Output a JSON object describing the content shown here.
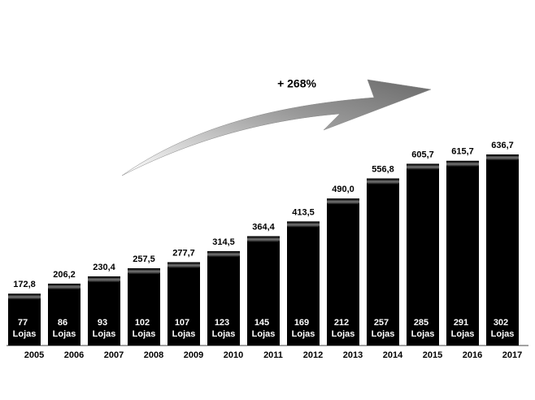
{
  "chart_data": {
    "type": "bar",
    "annotation": "+  268%",
    "categories": [
      "2005",
      "2006",
      "2007",
      "2008",
      "2009",
      "2010",
      "2011",
      "2012",
      "2013",
      "2014",
      "2015",
      "2016",
      "2017"
    ],
    "values": [
      172.8,
      206.2,
      230.4,
      257.5,
      277.7,
      314.5,
      364.4,
      413.5,
      490.0,
      556.8,
      605.7,
      615.7,
      636.7
    ],
    "value_labels": [
      "172,8",
      "206,2",
      "230,4",
      "257,5",
      "277,7",
      "314,5",
      "364,4",
      "413,5",
      "490,0",
      "556,8",
      "605,7",
      "615,7",
      "636,7"
    ],
    "stores": [
      77,
      86,
      93,
      102,
      107,
      123,
      145,
      169,
      212,
      257,
      285,
      291,
      302
    ],
    "stores_unit": "Lojas",
    "color": "#000000"
  }
}
